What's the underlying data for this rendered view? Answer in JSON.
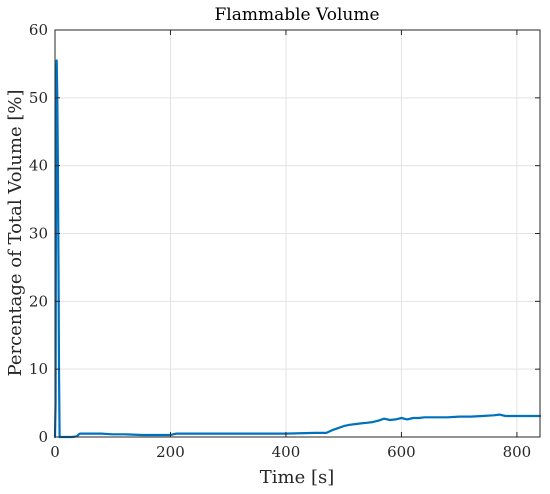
{
  "chart_data": {
    "type": "line",
    "title": "Flammable Volume",
    "xlabel": "Time [s]",
    "ylabel": "Percentage of Total Volume [%]",
    "xlim": [
      0,
      840
    ],
    "ylim": [
      0,
      60
    ],
    "xticks": [
      0,
      200,
      400,
      600,
      800
    ],
    "yticks": [
      0,
      10,
      20,
      30,
      40,
      50,
      60
    ],
    "grid": true,
    "line_color": "#0072BD",
    "series": [
      {
        "x": [
          0,
          1,
          2,
          3,
          4,
          5,
          6,
          7,
          8,
          10,
          12,
          15,
          20,
          30,
          38,
          40,
          43,
          46,
          50,
          60,
          80,
          100,
          120,
          150,
          180,
          200,
          210,
          250,
          300,
          350,
          400,
          450,
          470,
          480,
          490,
          500,
          510,
          520,
          530,
          540,
          550,
          560,
          570,
          580,
          590,
          600,
          610,
          620,
          630,
          640,
          660,
          680,
          700,
          720,
          740,
          760,
          770,
          780,
          800,
          820,
          840
        ],
        "y": [
          0,
          5,
          52,
          55.5,
          50,
          40,
          25,
          10,
          0,
          0,
          0,
          0,
          0,
          0,
          0.1,
          0.3,
          0.5,
          0.5,
          0.5,
          0.5,
          0.5,
          0.4,
          0.4,
          0.3,
          0.3,
          0.3,
          0.5,
          0.5,
          0.5,
          0.5,
          0.5,
          0.6,
          0.6,
          1.0,
          1.3,
          1.6,
          1.8,
          1.9,
          2.0,
          2.1,
          2.2,
          2.4,
          2.7,
          2.5,
          2.6,
          2.8,
          2.6,
          2.8,
          2.8,
          2.9,
          2.9,
          2.9,
          3.0,
          3.0,
          3.1,
          3.2,
          3.3,
          3.1,
          3.1,
          3.1,
          3.1
        ]
      }
    ]
  }
}
